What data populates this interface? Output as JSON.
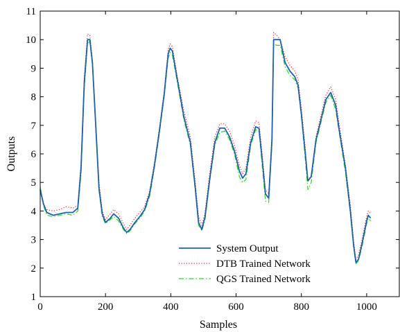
{
  "chart_data": {
    "type": "line",
    "xlabel": "Samples",
    "ylabel": "Outputs",
    "xlim": [
      0,
      1100
    ],
    "ylim": [
      1,
      11
    ],
    "xticks": [
      0,
      200,
      400,
      600,
      800,
      1000
    ],
    "yticks": [
      1,
      2,
      3,
      4,
      5,
      6,
      7,
      8,
      9,
      10,
      11
    ],
    "xtick_labels": [
      "0",
      "200",
      "400",
      "600",
      "800",
      "1000"
    ],
    "ytick_labels": [
      "1",
      "2",
      "3",
      "4",
      "5",
      "6",
      "7",
      "8",
      "9",
      "10",
      "11"
    ],
    "grid": false,
    "legend_position": "bottom-center",
    "series": [
      {
        "name": "System Output",
        "color": "#1f5fa8",
        "style": "solid",
        "points": [
          [
            0,
            4.75
          ],
          [
            10,
            4.25
          ],
          [
            20,
            3.95
          ],
          [
            40,
            3.85
          ],
          [
            60,
            3.9
          ],
          [
            80,
            3.95
          ],
          [
            100,
            3.95
          ],
          [
            115,
            4.1
          ],
          [
            125,
            5.5
          ],
          [
            135,
            8.5
          ],
          [
            145,
            10.0
          ],
          [
            152,
            10.0
          ],
          [
            160,
            9.2
          ],
          [
            170,
            7.0
          ],
          [
            180,
            4.8
          ],
          [
            190,
            3.9
          ],
          [
            200,
            3.6
          ],
          [
            215,
            3.75
          ],
          [
            225,
            3.9
          ],
          [
            240,
            3.75
          ],
          [
            255,
            3.4
          ],
          [
            265,
            3.25
          ],
          [
            275,
            3.35
          ],
          [
            290,
            3.6
          ],
          [
            305,
            3.8
          ],
          [
            320,
            4.05
          ],
          [
            335,
            4.6
          ],
          [
            350,
            5.6
          ],
          [
            365,
            6.8
          ],
          [
            380,
            8.1
          ],
          [
            392,
            9.5
          ],
          [
            398,
            9.7
          ],
          [
            405,
            9.6
          ],
          [
            420,
            8.6
          ],
          [
            440,
            7.3
          ],
          [
            460,
            6.4
          ],
          [
            475,
            4.8
          ],
          [
            485,
            3.6
          ],
          [
            495,
            3.35
          ],
          [
            505,
            3.8
          ],
          [
            520,
            5.2
          ],
          [
            535,
            6.4
          ],
          [
            550,
            6.9
          ],
          [
            565,
            6.9
          ],
          [
            580,
            6.6
          ],
          [
            595,
            6.1
          ],
          [
            610,
            5.4
          ],
          [
            620,
            5.15
          ],
          [
            630,
            5.3
          ],
          [
            645,
            6.4
          ],
          [
            660,
            6.95
          ],
          [
            670,
            6.9
          ],
          [
            680,
            5.8
          ],
          [
            690,
            4.6
          ],
          [
            700,
            4.45
          ],
          [
            710,
            6.5
          ],
          [
            715,
            10.0
          ],
          [
            725,
            10.0
          ],
          [
            735,
            10.0
          ],
          [
            750,
            9.2
          ],
          [
            765,
            8.9
          ],
          [
            780,
            8.7
          ],
          [
            790,
            8.4
          ],
          [
            800,
            7.4
          ],
          [
            812,
            6.0
          ],
          [
            820,
            5.05
          ],
          [
            830,
            5.2
          ],
          [
            845,
            6.5
          ],
          [
            860,
            7.2
          ],
          [
            875,
            7.9
          ],
          [
            890,
            8.15
          ],
          [
            905,
            7.7
          ],
          [
            915,
            6.9
          ],
          [
            935,
            5.5
          ],
          [
            950,
            4.0
          ],
          [
            960,
            2.8
          ],
          [
            967,
            2.2
          ],
          [
            975,
            2.3
          ],
          [
            985,
            2.8
          ],
          [
            1000,
            3.65
          ],
          [
            1005,
            3.85
          ],
          [
            1012,
            3.75
          ]
        ]
      },
      {
        "name": "DTB Trained Network",
        "color": "#e8202a",
        "style": "dotted",
        "points": [
          [
            0,
            4.7
          ],
          [
            10,
            4.2
          ],
          [
            20,
            4.05
          ],
          [
            40,
            4.0
          ],
          [
            60,
            4.05
          ],
          [
            80,
            4.15
          ],
          [
            100,
            4.1
          ],
          [
            115,
            4.2
          ],
          [
            125,
            5.7
          ],
          [
            135,
            8.7
          ],
          [
            145,
            10.2
          ],
          [
            152,
            10.15
          ],
          [
            160,
            9.3
          ],
          [
            170,
            7.1
          ],
          [
            180,
            5.0
          ],
          [
            190,
            4.0
          ],
          [
            200,
            3.7
          ],
          [
            215,
            3.9
          ],
          [
            225,
            4.05
          ],
          [
            240,
            3.9
          ],
          [
            255,
            3.55
          ],
          [
            265,
            3.35
          ],
          [
            275,
            3.5
          ],
          [
            290,
            3.75
          ],
          [
            305,
            3.95
          ],
          [
            320,
            4.15
          ],
          [
            335,
            4.7
          ],
          [
            350,
            5.7
          ],
          [
            365,
            6.9
          ],
          [
            380,
            8.2
          ],
          [
            392,
            9.65
          ],
          [
            398,
            9.85
          ],
          [
            405,
            9.75
          ],
          [
            420,
            8.7
          ],
          [
            440,
            7.5
          ],
          [
            460,
            6.6
          ],
          [
            475,
            5.0
          ],
          [
            485,
            3.8
          ],
          [
            495,
            3.5
          ],
          [
            505,
            3.95
          ],
          [
            520,
            5.4
          ],
          [
            535,
            6.6
          ],
          [
            550,
            7.05
          ],
          [
            565,
            7.05
          ],
          [
            580,
            6.8
          ],
          [
            595,
            6.3
          ],
          [
            610,
            5.6
          ],
          [
            620,
            5.3
          ],
          [
            630,
            5.5
          ],
          [
            645,
            6.6
          ],
          [
            660,
            7.15
          ],
          [
            670,
            7.1
          ],
          [
            680,
            6.0
          ],
          [
            690,
            4.75
          ],
          [
            700,
            4.6
          ],
          [
            710,
            6.7
          ],
          [
            715,
            10.25
          ],
          [
            725,
            10.15
          ],
          [
            735,
            10.0
          ],
          [
            750,
            9.4
          ],
          [
            765,
            9.1
          ],
          [
            780,
            8.9
          ],
          [
            790,
            8.6
          ],
          [
            800,
            7.6
          ],
          [
            812,
            6.2
          ],
          [
            820,
            5.05
          ],
          [
            830,
            5.25
          ],
          [
            845,
            6.6
          ],
          [
            860,
            7.35
          ],
          [
            875,
            8.05
          ],
          [
            890,
            8.35
          ],
          [
            905,
            7.9
          ],
          [
            915,
            7.1
          ],
          [
            935,
            5.6
          ],
          [
            950,
            4.2
          ],
          [
            960,
            2.95
          ],
          [
            967,
            2.3
          ],
          [
            975,
            2.45
          ],
          [
            985,
            2.95
          ],
          [
            1000,
            3.8
          ],
          [
            1005,
            4.0
          ],
          [
            1012,
            3.9
          ]
        ]
      },
      {
        "name": "QGS Trained Network",
        "color": "#22dd22",
        "style": "dashdot",
        "points": [
          [
            0,
            4.85
          ],
          [
            10,
            4.2
          ],
          [
            20,
            3.85
          ],
          [
            40,
            3.8
          ],
          [
            60,
            3.85
          ],
          [
            80,
            3.9
          ],
          [
            100,
            3.85
          ],
          [
            115,
            4.0
          ],
          [
            125,
            5.3
          ],
          [
            135,
            8.3
          ],
          [
            145,
            9.85
          ],
          [
            152,
            9.95
          ],
          [
            160,
            9.1
          ],
          [
            170,
            6.9
          ],
          [
            180,
            4.7
          ],
          [
            190,
            3.8
          ],
          [
            200,
            3.55
          ],
          [
            215,
            3.7
          ],
          [
            225,
            3.8
          ],
          [
            240,
            3.65
          ],
          [
            255,
            3.35
          ],
          [
            265,
            3.2
          ],
          [
            275,
            3.3
          ],
          [
            290,
            3.55
          ],
          [
            305,
            3.75
          ],
          [
            320,
            4.0
          ],
          [
            335,
            4.5
          ],
          [
            350,
            5.5
          ],
          [
            365,
            6.7
          ],
          [
            380,
            8.0
          ],
          [
            392,
            9.35
          ],
          [
            398,
            9.55
          ],
          [
            405,
            9.45
          ],
          [
            420,
            8.5
          ],
          [
            440,
            7.2
          ],
          [
            460,
            6.3
          ],
          [
            475,
            4.7
          ],
          [
            485,
            3.5
          ],
          [
            495,
            3.3
          ],
          [
            505,
            3.7
          ],
          [
            520,
            5.1
          ],
          [
            535,
            6.3
          ],
          [
            550,
            6.75
          ],
          [
            565,
            6.8
          ],
          [
            580,
            6.5
          ],
          [
            595,
            6.0
          ],
          [
            610,
            5.2
          ],
          [
            620,
            5.0
          ],
          [
            630,
            5.1
          ],
          [
            645,
            6.3
          ],
          [
            660,
            6.85
          ],
          [
            670,
            6.8
          ],
          [
            680,
            5.6
          ],
          [
            690,
            4.35
          ],
          [
            700,
            4.3
          ],
          [
            710,
            6.3
          ],
          [
            715,
            9.85
          ],
          [
            725,
            9.8
          ],
          [
            735,
            9.8
          ],
          [
            750,
            9.05
          ],
          [
            765,
            8.75
          ],
          [
            780,
            8.6
          ],
          [
            790,
            8.3
          ],
          [
            800,
            7.3
          ],
          [
            812,
            5.8
          ],
          [
            820,
            4.75
          ],
          [
            830,
            5.0
          ],
          [
            845,
            6.4
          ],
          [
            860,
            7.1
          ],
          [
            875,
            7.8
          ],
          [
            890,
            8.05
          ],
          [
            905,
            7.55
          ],
          [
            915,
            6.8
          ],
          [
            935,
            5.35
          ],
          [
            950,
            3.9
          ],
          [
            960,
            2.7
          ],
          [
            967,
            2.15
          ],
          [
            975,
            2.25
          ],
          [
            985,
            2.7
          ],
          [
            1000,
            3.55
          ],
          [
            1005,
            3.75
          ],
          [
            1012,
            3.65
          ]
        ]
      }
    ]
  }
}
